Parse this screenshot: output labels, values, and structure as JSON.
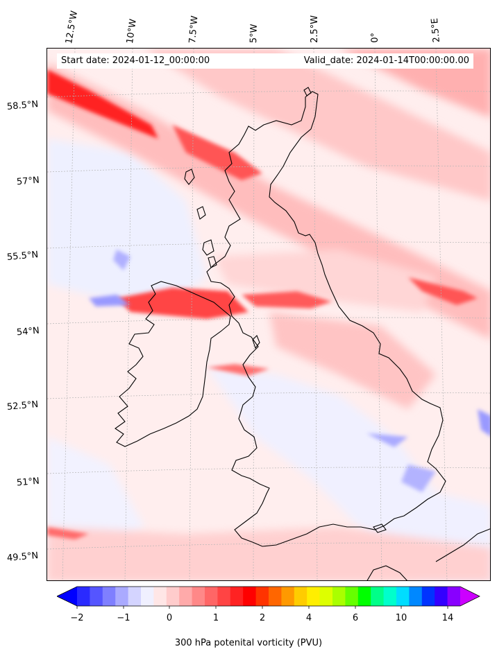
{
  "header": {
    "start_date": "Start date: 2024-01-12_00:00:00",
    "valid_date": "Valid_date: 2024-01-14T00:00:00.00"
  },
  "longitude_labels": [
    "12.5°W",
    "10°W",
    "7.5°W",
    "5°W",
    "2.5°W",
    "0°",
    "2.5°E"
  ],
  "latitude_labels": [
    "58.5°N",
    "57°N",
    "55.5°N",
    "54°N",
    "52.5°N",
    "51°N",
    "49.5°N"
  ],
  "colorbar": {
    "label": "300 hPa potenital vorticity (PVU)",
    "ticks": [
      "−2",
      "−1",
      "0",
      "1",
      "2",
      "4",
      "6",
      "10",
      "14"
    ],
    "colors": [
      "#0000ff",
      "#2a2aff",
      "#5555ff",
      "#7f7fff",
      "#aaaaff",
      "#d4d4ff",
      "#f0f0ff",
      "#ffe6e6",
      "#ffcccc",
      "#ffaaaa",
      "#ff8888",
      "#ff6666",
      "#ff4444",
      "#ff2222",
      "#ff0000",
      "#ff3300",
      "#ff6600",
      "#ff9900",
      "#ffcc00",
      "#ffee00",
      "#ddff00",
      "#aaff00",
      "#66ff00",
      "#00ff00",
      "#00ff88",
      "#00ffcc",
      "#00ddff",
      "#0088ff",
      "#0033ff",
      "#3300ff",
      "#8800ff",
      "#cc00ff"
    ]
  }
}
